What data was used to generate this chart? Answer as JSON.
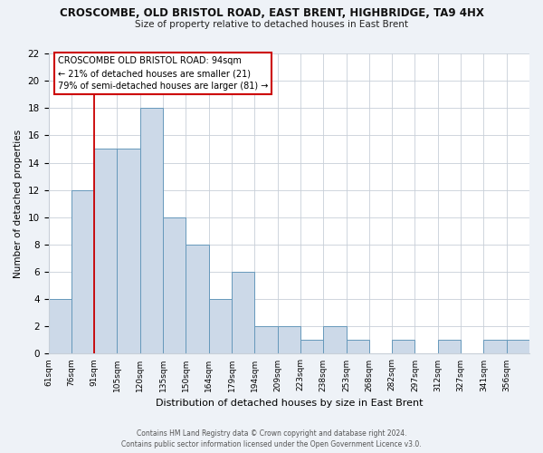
{
  "title": "CROSCOMBE, OLD BRISTOL ROAD, EAST BRENT, HIGHBRIDGE, TA9 4HX",
  "subtitle": "Size of property relative to detached houses in East Brent",
  "xlabel": "Distribution of detached houses by size in East Brent",
  "ylabel": "Number of detached properties",
  "bar_color": "#ccd9e8",
  "bar_edge_color": "#6699bb",
  "bin_labels": [
    "61sqm",
    "76sqm",
    "91sqm",
    "105sqm",
    "120sqm",
    "135sqm",
    "150sqm",
    "164sqm",
    "179sqm",
    "194sqm",
    "209sqm",
    "223sqm",
    "238sqm",
    "253sqm",
    "268sqm",
    "282sqm",
    "297sqm",
    "312sqm",
    "327sqm",
    "341sqm",
    "356sqm"
  ],
  "bar_heights": [
    4,
    12,
    15,
    15,
    18,
    10,
    8,
    4,
    6,
    2,
    2,
    1,
    2,
    1,
    0,
    1,
    0,
    1,
    0,
    1,
    1
  ],
  "ylim": [
    0,
    22
  ],
  "yticks": [
    0,
    2,
    4,
    6,
    8,
    10,
    12,
    14,
    16,
    18,
    20,
    22
  ],
  "vline_x": 2,
  "vline_color": "#cc0000",
  "annotation_title": "CROSCOMBE OLD BRISTOL ROAD: 94sqm",
  "annotation_line1": "← 21% of detached houses are smaller (21)",
  "annotation_line2": "79% of semi-detached houses are larger (81) →",
  "footer1": "Contains HM Land Registry data © Crown copyright and database right 2024.",
  "footer2": "Contains public sector information licensed under the Open Government Licence v3.0.",
  "background_color": "#eef2f7",
  "plot_background": "#ffffff"
}
